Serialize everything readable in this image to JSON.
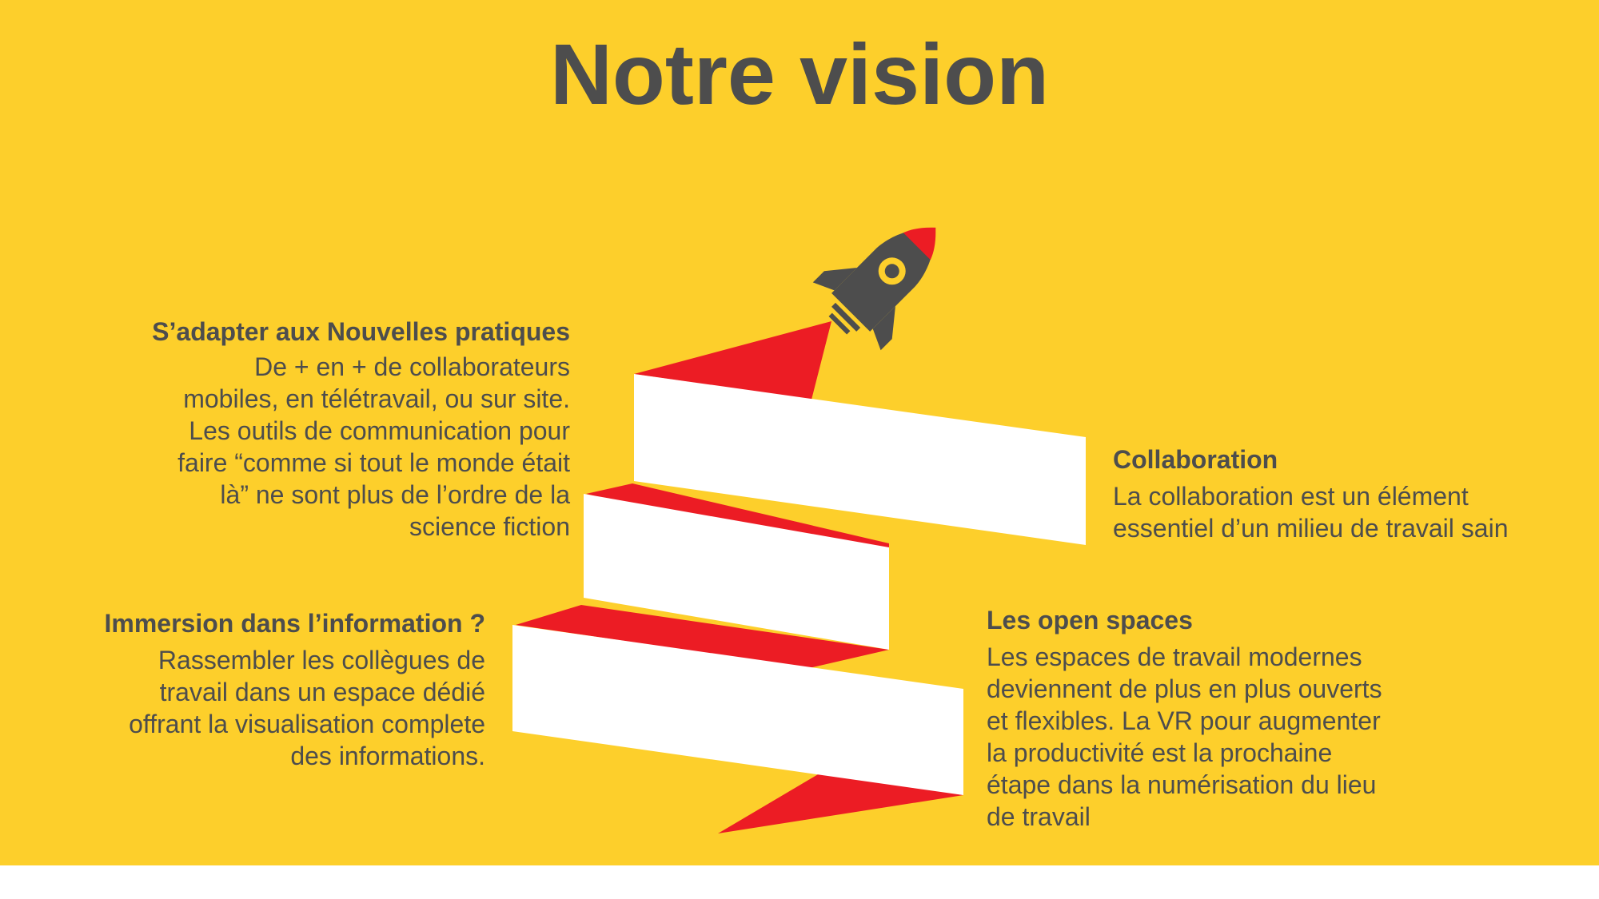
{
  "title": "Notre vision",
  "colors": {
    "background": "#fdcf2b",
    "text": "#4d4d4d",
    "accent_red": "#ec1c24",
    "ribbon": "#ffffff"
  },
  "icons": [
    "rocket-icon"
  ],
  "blocks": {
    "adapter": {
      "heading": "S’adapter aux Nouvelles pratiques",
      "lines": [
        "De + en + de collaborateurs",
        "mobiles, en télétravail, ou sur site.",
        "Les outils de communication pour",
        "faire “comme si tout le monde était",
        "là” ne sont plus de l’ordre de la",
        "science fiction"
      ]
    },
    "collaboration": {
      "heading": "Collaboration",
      "lines": [
        "La collaboration est un élément",
        "essentiel d’un milieu de travail sain"
      ]
    },
    "immersion": {
      "heading": "Immersion dans l’information ?",
      "lines": [
        "Rassembler les collègues de",
        "travail dans un espace dédié",
        "offrant la visualisation complete",
        "des informations."
      ]
    },
    "openspaces": {
      "heading": "Les open spaces",
      "lines": [
        "Les espaces de travail modernes",
        "deviennent de plus en plus ouverts",
        "et flexibles. La VR pour augmenter",
        "la productivité est la prochaine",
        "étape dans la numérisation du lieu",
        "de travail"
      ]
    }
  }
}
